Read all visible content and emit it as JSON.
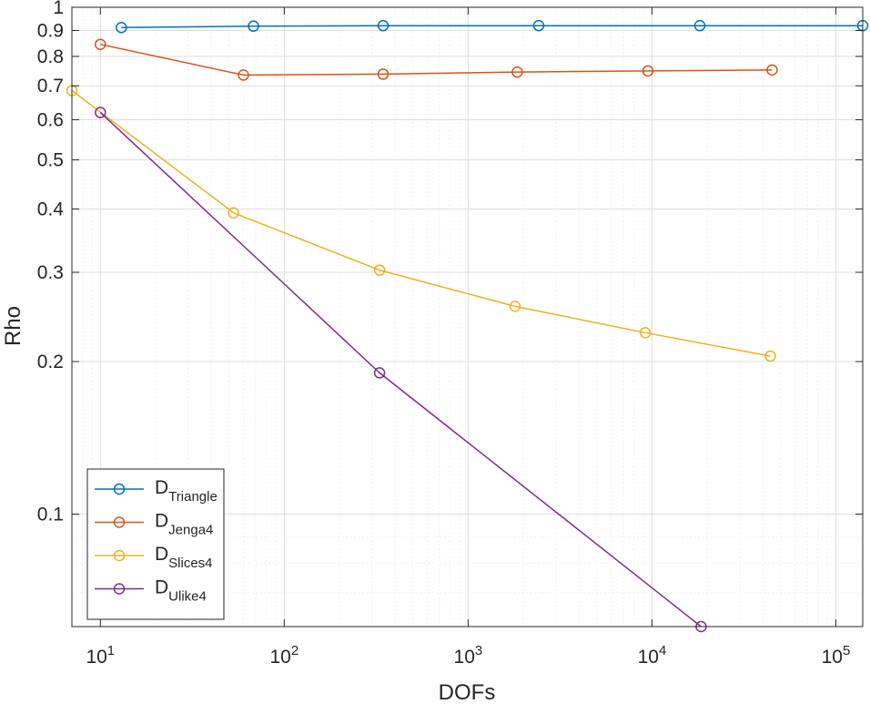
{
  "chart_data": {
    "type": "line",
    "xscale": "log",
    "yscale": "log",
    "xlabel": "DOFs",
    "ylabel": "Rho",
    "xlim": [
      7,
      140000
    ],
    "ylim": [
      0.06,
      1
    ],
    "grid": true,
    "minor_grid": true,
    "legend_position": "bottom-left",
    "x_ticks": [
      {
        "value": 10,
        "base": "10",
        "exp": "1"
      },
      {
        "value": 100,
        "base": "10",
        "exp": "2"
      },
      {
        "value": 1000,
        "base": "10",
        "exp": "3"
      },
      {
        "value": 10000,
        "base": "10",
        "exp": "4"
      },
      {
        "value": 100000,
        "base": "10",
        "exp": "5"
      }
    ],
    "y_ticks": [
      {
        "value": 0.1,
        "label": "0.1"
      },
      {
        "value": 0.2,
        "label": "0.2"
      },
      {
        "value": 0.3,
        "label": "0.3"
      },
      {
        "value": 0.4,
        "label": "0.4"
      },
      {
        "value": 0.5,
        "label": "0.5"
      },
      {
        "value": 0.6,
        "label": "0.6"
      },
      {
        "value": 0.7,
        "label": "0.7"
      },
      {
        "value": 0.8,
        "label": "0.8"
      },
      {
        "value": 0.9,
        "label": "0.9"
      },
      {
        "value": 1,
        "label": "1"
      }
    ],
    "series": [
      {
        "name": "D",
        "subscript": "Triangle",
        "color": "#0072BD",
        "x": [
          13,
          68,
          345,
          2420,
          18200,
          140000
        ],
        "y": [
          0.912,
          0.918,
          0.92,
          0.92,
          0.92,
          0.92
        ]
      },
      {
        "name": "D",
        "subscript": "Jenga4",
        "color": "#D95319",
        "x": [
          10,
          60,
          345,
          1850,
          9500,
          45000
        ],
        "y": [
          0.845,
          0.735,
          0.738,
          0.745,
          0.749,
          0.752
        ]
      },
      {
        "name": "D",
        "subscript": "Slices4",
        "color": "#EDB120",
        "x": [
          7,
          53,
          330,
          1800,
          9200,
          44000
        ],
        "y": [
          0.685,
          0.393,
          0.303,
          0.257,
          0.228,
          0.205
        ]
      },
      {
        "name": "D",
        "subscript": "Ulike4",
        "color": "#7E2F8E",
        "x": [
          10,
          330,
          18500
        ],
        "y": [
          0.62,
          0.19,
          0.06
        ]
      }
    ]
  }
}
